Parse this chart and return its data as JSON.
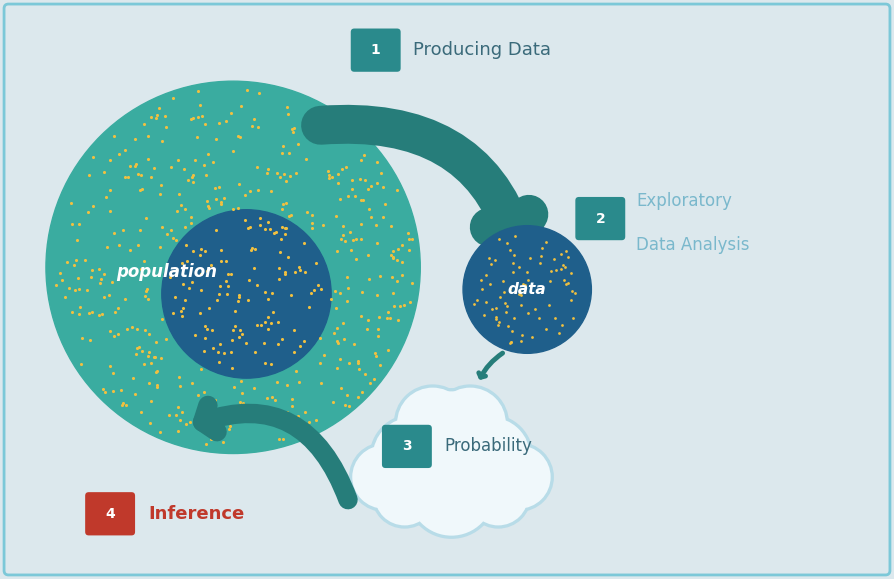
{
  "bg_color": "#dce8ed",
  "border_color": "#7cc8d8",
  "teal_pop": "#3aaca0",
  "teal_dark": "#2a8a8c",
  "teal_arrow": "#267d7a",
  "blue_sample": "#1f5f8b",
  "gold_dot": "#f0c040",
  "cloud_fill": "#f0f8fb",
  "cloud_border": "#b8dce8",
  "label1_bg": "#2a8a8c",
  "label2_bg": "#2a8a8c",
  "label3_bg": "#2a8a8c",
  "label4_bg": "#c0392b",
  "label_text": "#ffffff",
  "text_teal": "#7ab8cc",
  "text_dark": "#3a6a7a",
  "inference_color": "#c0392b",
  "pop_label": "population",
  "data_label": "data",
  "step1_label": "Producing Data",
  "step2_line1": "Exploratory",
  "step2_line2": "Data Analysis",
  "step3_label": "Probability",
  "step4_label": "Inference",
  "fig_width": 8.94,
  "fig_height": 5.79
}
